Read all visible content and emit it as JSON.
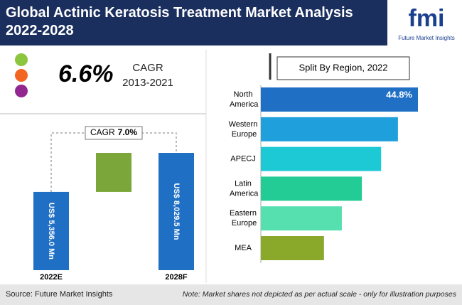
{
  "header": {
    "title": "Global Actinic Keratosis Treatment Market Analysis 2022-2028",
    "logo": "fmi",
    "logo_subtitle": "Future Market Insights"
  },
  "cagr": {
    "value": "6.6%",
    "label": "CAGR",
    "period": "2013-2021"
  },
  "chart_data": [
    {
      "type": "bar",
      "categories": [
        "2022E",
        "2028F"
      ],
      "values": [
        5356.0,
        8029.5
      ],
      "value_labels": [
        "US$ 5,356.0 Mn",
        "US$ 8,029.5 Mn"
      ],
      "color": "#1f6fc5",
      "increment_color": "#7ba73a",
      "annotation": {
        "label": "CAGR",
        "value": "7.0%"
      }
    },
    {
      "type": "hbar",
      "title": "Split By Region, 2022",
      "categories": [
        "North America",
        "Western Europe",
        "APECJ",
        "Latin America",
        "Eastern Europe",
        "MEA"
      ],
      "values": [
        44.8,
        39.1,
        34.3,
        28.8,
        23.1,
        18.0
      ],
      "value_labels": [
        "44.8%",
        null,
        null,
        null,
        null,
        null
      ],
      "colors": [
        "#1f6fc5",
        "#1fa0dc",
        "#1ec9d6",
        "#22cc94",
        "#56e0b0",
        "#8aa82a"
      ]
    }
  ],
  "footer": {
    "source": "Source: Future Market Insights",
    "note": "Note: Market shares not depicted as per actual scale - only for illustration purposes"
  }
}
